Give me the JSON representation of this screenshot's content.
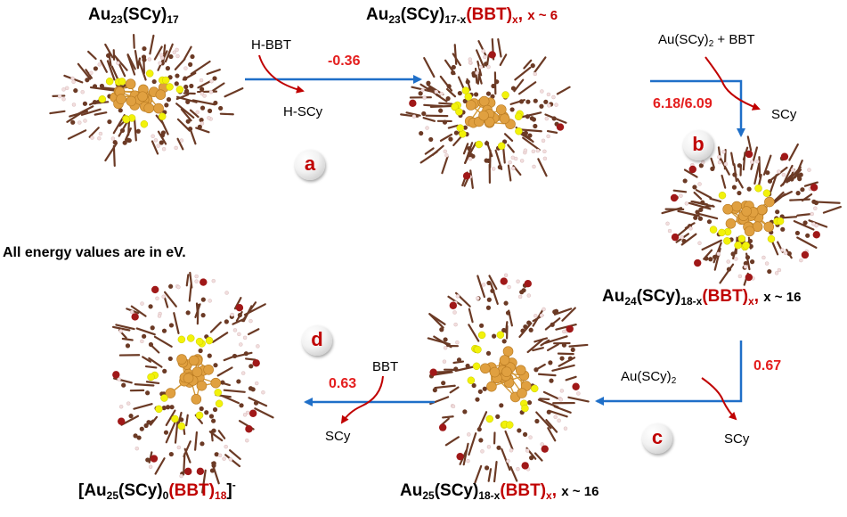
{
  "colors": {
    "arrow": "#1f6fc8",
    "energy": "#e41e1e",
    "curved_arrow": "#c00000",
    "bbt_label": "#c00000",
    "gold": "#e0a040",
    "sulfur": "#f2f20a",
    "carbon": "#6b3a25",
    "bromine": "#a01818",
    "hydrogen": "#f2dede"
  },
  "structures": {
    "s1": {
      "prefix": "Au",
      "sub1": "23",
      "mid": "(SCy)",
      "sub2": "17"
    },
    "s2": {
      "prefix": "Au",
      "sub1": "23",
      "mid": "(SCy)",
      "sub2": "17-x",
      "bbt": "(BBT)",
      "bbt_sub": "x",
      "comma": ",",
      "xnote": "x ~ 6"
    },
    "s3": {
      "prefix": "Au",
      "sub1": "24",
      "mid": "(SCy)",
      "sub2": "18-x",
      "bbt": "(BBT)",
      "bbt_sub": "x",
      "comma": ",",
      "xnote": "x ~ 16"
    },
    "s4": {
      "prefix": "Au",
      "sub1": "25",
      "mid": "(SCy)",
      "sub2": "18-x",
      "bbt": "(BBT)",
      "bbt_sub": "x",
      "comma": ",",
      "xnote": "x ~ 16"
    },
    "s5": {
      "open": "[Au",
      "sub1": "25",
      "mid": "(SCy)",
      "sub2": "0",
      "bbt": "(BBT)",
      "bbt_sub": "18",
      "close": "]",
      "charge": "-"
    }
  },
  "steps": {
    "a": {
      "badge": "a",
      "energy": "-0.36",
      "reactant": "H-BBT",
      "product": "H-SCy"
    },
    "b": {
      "badge": "b",
      "energy": "6.18/6.09",
      "reactant_prefix": "Au(SCy)",
      "reactant_sub": "2",
      "reactant_suffix": " + BBT",
      "product": "SCy"
    },
    "c": {
      "badge": "c",
      "energy": "0.67",
      "reactant_prefix": "Au(SCy)",
      "reactant_sub": "2",
      "product": "SCy"
    },
    "d": {
      "badge": "d",
      "energy": "0.63",
      "reactant": "BBT",
      "product": "SCy"
    }
  },
  "note": "All energy values are in eV."
}
